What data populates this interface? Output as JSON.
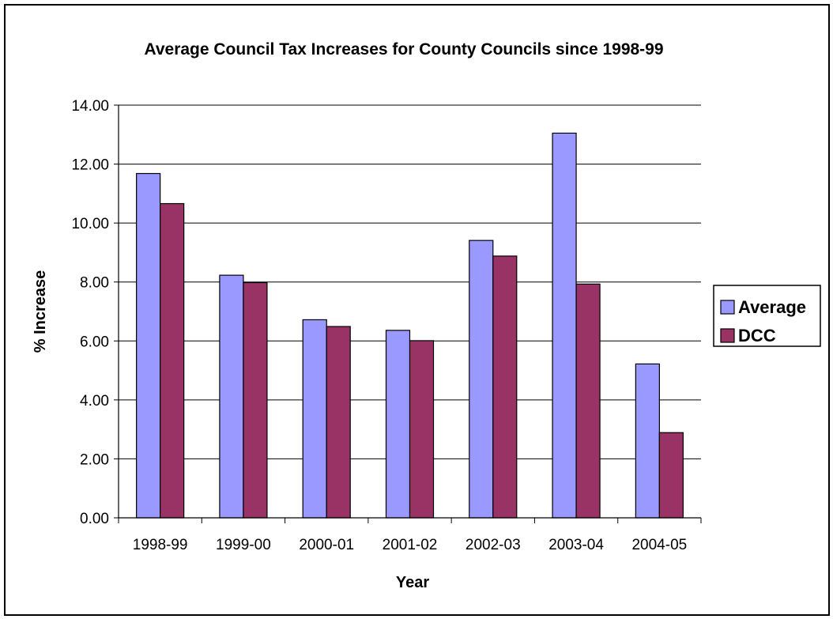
{
  "chart_data": {
    "type": "bar",
    "title": "Average Council Tax Increases for County Councils since 1998-99",
    "xlabel": "Year",
    "ylabel": "% Increase",
    "categories": [
      "1998-99",
      "1999-00",
      "2000-01",
      "2001-02",
      "2002-03",
      "2003-04",
      "2004-05"
    ],
    "series": [
      {
        "name": "Average",
        "color": "#9999ff",
        "values": [
          11.68,
          8.23,
          6.72,
          6.36,
          9.41,
          13.05,
          5.22
        ]
      },
      {
        "name": "DCC",
        "color": "#993366",
        "values": [
          10.66,
          7.98,
          6.49,
          6.01,
          8.88,
          7.93,
          2.89
        ]
      }
    ],
    "ylim": [
      0,
      14
    ],
    "yticks": [
      "0.00",
      "2.00",
      "4.00",
      "6.00",
      "8.00",
      "10.00",
      "12.00",
      "14.00"
    ],
    "grid": true,
    "legend_position": "right"
  }
}
